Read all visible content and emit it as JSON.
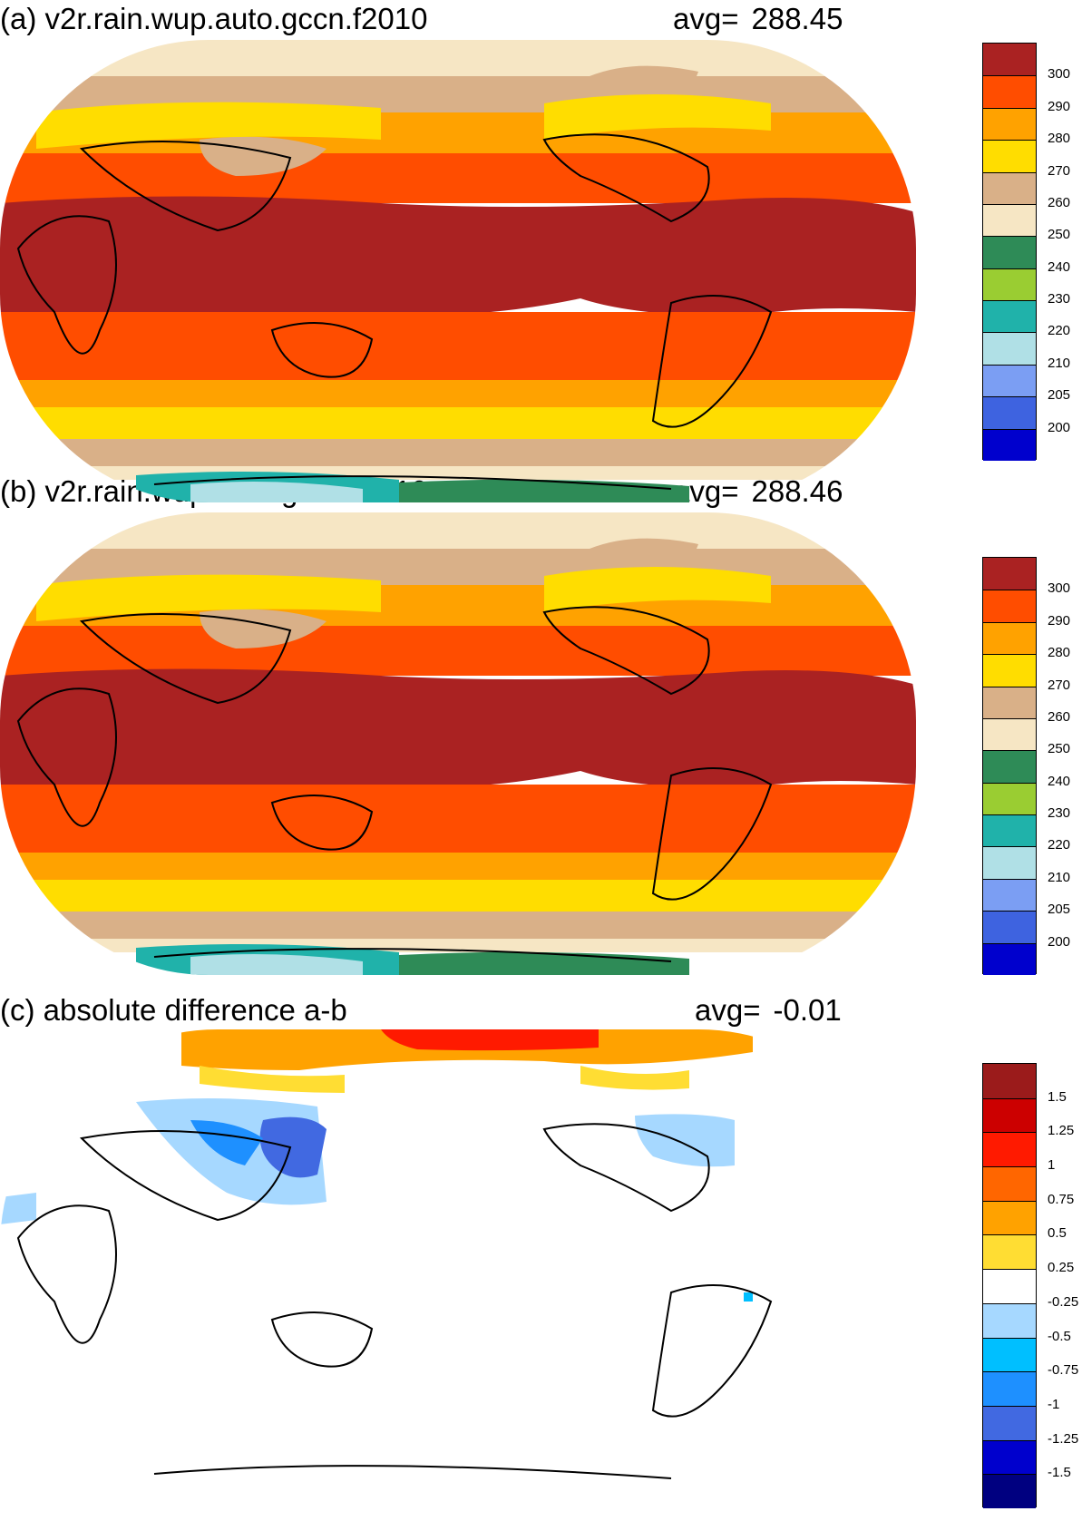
{
  "panels": [
    {
      "title": "(a) v2r.rain.wup.auto.gccn.f2010",
      "avg_label": "avg=",
      "avg_value": "288.45",
      "colors": [
        "#aa2222",
        "#ff4d00",
        "#ffa200",
        "#ffdd00",
        "#d9b088",
        "#f6e6c4",
        "#2e8b57",
        "#9acd32",
        "#20b2aa",
        "#b0e0e6",
        "#7b9ef3",
        "#3e63e0",
        "#0000cd"
      ],
      "ticks": [
        "300",
        "290",
        "280",
        "270",
        "260",
        "250",
        "240",
        "230",
        "220",
        "210",
        "205",
        "200"
      ]
    },
    {
      "title": "(b) v2r.rain.wup.auto.gccn.f2010.a1850",
      "avg_label": "avg=",
      "avg_value": "288.46",
      "colors": [
        "#aa2222",
        "#ff4d00",
        "#ffa200",
        "#ffdd00",
        "#d9b088",
        "#f6e6c4",
        "#2e8b57",
        "#9acd32",
        "#20b2aa",
        "#b0e0e6",
        "#7b9ef3",
        "#3e63e0",
        "#0000cd"
      ],
      "ticks": [
        "300",
        "290",
        "280",
        "270",
        "260",
        "250",
        "240",
        "230",
        "220",
        "210",
        "205",
        "200"
      ]
    },
    {
      "title": "(c) absolute difference a-b",
      "avg_label": "avg=",
      "avg_value": "-0.01",
      "colors": [
        "#9b1b1b",
        "#cc0000",
        "#ff1a00",
        "#ff6600",
        "#ffa200",
        "#ffdd33",
        "#ffffff",
        "#a6d8ff",
        "#00bfff",
        "#1e90ff",
        "#4169e1",
        "#0000cd",
        "#000080"
      ],
      "ticks": [
        "1.5",
        "1.25",
        "1",
        "0.75",
        "0.5",
        "0.25",
        "-0.25",
        "-0.5",
        "-0.75",
        "-1",
        "-1.25",
        "-1.5"
      ]
    }
  ]
}
